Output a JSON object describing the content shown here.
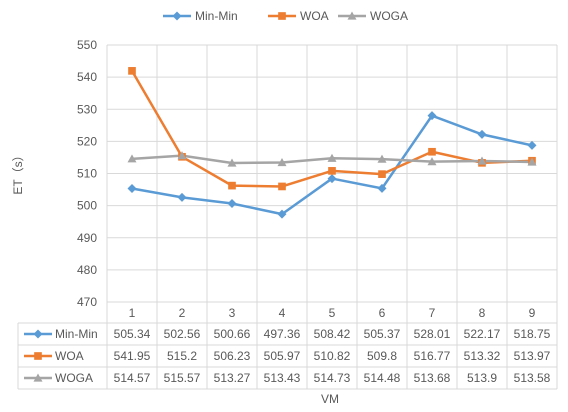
{
  "chart_data": {
    "type": "line",
    "title": "",
    "xlabel": "VM",
    "ylabel": "ET（s）",
    "ylim": [
      470,
      550
    ],
    "ytick_step": 10,
    "categories": [
      "1",
      "2",
      "3",
      "4",
      "5",
      "6",
      "7",
      "8",
      "9"
    ],
    "series": [
      {
        "name": "Min-Min",
        "marker": "diamond",
        "color": "#5b9bd5",
        "values": [
          505.34,
          502.56,
          500.66,
          497.36,
          508.42,
          505.37,
          528.01,
          522.17,
          518.75
        ]
      },
      {
        "name": "WOA",
        "marker": "square",
        "color": "#ed7d31",
        "values": [
          541.95,
          515.2,
          506.23,
          505.97,
          510.82,
          509.8,
          516.77,
          513.32,
          513.97
        ]
      },
      {
        "name": "WOGA",
        "marker": "triangle",
        "color": "#a5a5a5",
        "values": [
          514.57,
          515.57,
          513.27,
          513.43,
          514.73,
          514.48,
          513.68,
          513.9,
          513.58
        ]
      }
    ],
    "legend_position": "top",
    "grid": true,
    "data_table": true
  }
}
